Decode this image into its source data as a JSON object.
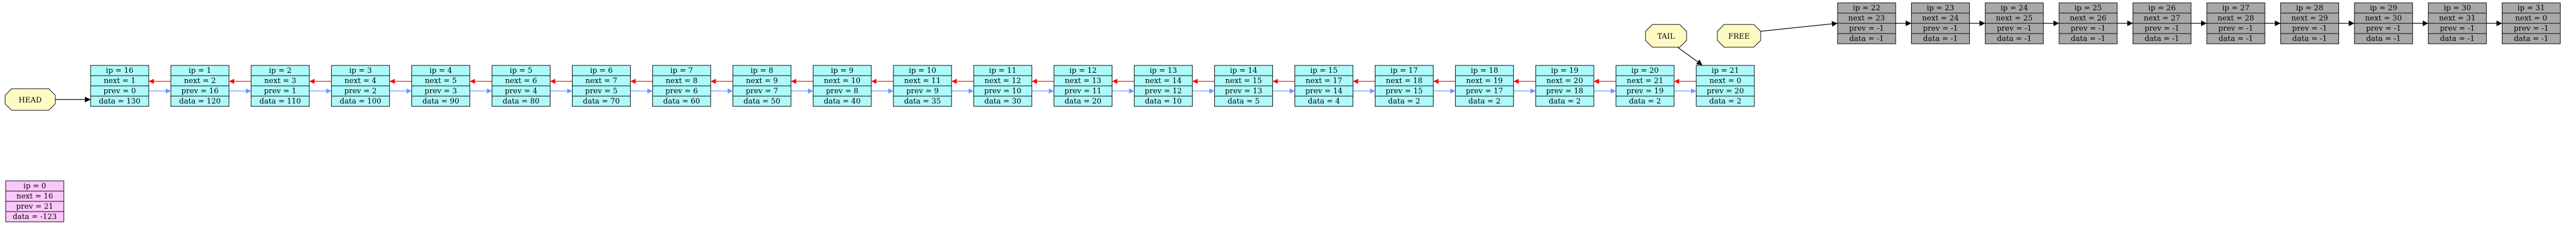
{
  "colors": {
    "active": "#aefafa",
    "free": "#a8a8a8",
    "sentinel": "#fac8fa",
    "label": "#fffac4",
    "next_edge": "#ff0000",
    "prev_edge": "#6699ff",
    "free_edge": "#000000",
    "border": "#000000"
  },
  "labels": {
    "head": "HEAD",
    "tail": "TAIL",
    "free": "FREE"
  },
  "sentinel": {
    "rows": [
      "ip = 0",
      "next = 16",
      "prev = 21",
      "data = -123"
    ]
  },
  "active_nodes": [
    {
      "rows": [
        "ip = 16",
        "next = 1",
        "prev = 0",
        "data = 130"
      ]
    },
    {
      "rows": [
        "ip = 1",
        "next = 2",
        "prev = 16",
        "data = 120"
      ]
    },
    {
      "rows": [
        "ip = 2",
        "next = 3",
        "prev = 1",
        "data = 110"
      ]
    },
    {
      "rows": [
        "ip = 3",
        "next = 4",
        "prev = 2",
        "data = 100"
      ]
    },
    {
      "rows": [
        "ip = 4",
        "next = 5",
        "prev = 3",
        "data = 90"
      ]
    },
    {
      "rows": [
        "ip = 5",
        "next = 6",
        "prev = 4",
        "data = 80"
      ]
    },
    {
      "rows": [
        "ip = 6",
        "next = 7",
        "prev = 5",
        "data = 70"
      ]
    },
    {
      "rows": [
        "ip = 7",
        "next = 8",
        "prev = 6",
        "data = 60"
      ]
    },
    {
      "rows": [
        "ip = 8",
        "next = 9",
        "prev = 7",
        "data = 50"
      ]
    },
    {
      "rows": [
        "ip = 9",
        "next = 10",
        "prev = 8",
        "data = 40"
      ]
    },
    {
      "rows": [
        "ip = 10",
        "next = 11",
        "prev = 9",
        "data = 35"
      ]
    },
    {
      "rows": [
        "ip = 11",
        "next = 12",
        "prev = 10",
        "data = 30"
      ]
    },
    {
      "rows": [
        "ip = 12",
        "next = 13",
        "prev = 11",
        "data = 20"
      ]
    },
    {
      "rows": [
        "ip = 13",
        "next = 14",
        "prev = 12",
        "data = 10"
      ]
    },
    {
      "rows": [
        "ip = 14",
        "next = 15",
        "prev = 13",
        "data = 5"
      ]
    },
    {
      "rows": [
        "ip = 15",
        "next = 17",
        "prev = 14",
        "data = 4"
      ]
    },
    {
      "rows": [
        "ip = 17",
        "next = 18",
        "prev = 15",
        "data = 2"
      ]
    },
    {
      "rows": [
        "ip = 18",
        "next = 19",
        "prev = 17",
        "data = 2"
      ]
    },
    {
      "rows": [
        "ip = 19",
        "next = 20",
        "prev = 18",
        "data = 2"
      ]
    },
    {
      "rows": [
        "ip = 20",
        "next = 21",
        "prev = 19",
        "data = 2"
      ]
    },
    {
      "rows": [
        "ip = 21",
        "next = 0",
        "prev = 20",
        "data = 2"
      ]
    }
  ],
  "free_nodes": [
    {
      "rows": [
        "ip = 22",
        "next = 23",
        "prev = -1",
        "data = -1"
      ]
    },
    {
      "rows": [
        "ip = 23",
        "next = 24",
        "prev = -1",
        "data = -1"
      ]
    },
    {
      "rows": [
        "ip = 24",
        "next = 25",
        "prev = -1",
        "data = -1"
      ]
    },
    {
      "rows": [
        "ip = 25",
        "next = 26",
        "prev = -1",
        "data = -1"
      ]
    },
    {
      "rows": [
        "ip = 26",
        "next = 27",
        "prev = -1",
        "data = -1"
      ]
    },
    {
      "rows": [
        "ip = 27",
        "next = 28",
        "prev = -1",
        "data = -1"
      ]
    },
    {
      "rows": [
        "ip = 28",
        "next = 29",
        "prev = -1",
        "data = -1"
      ]
    },
    {
      "rows": [
        "ip = 29",
        "next = 30",
        "prev = -1",
        "data = -1"
      ]
    },
    {
      "rows": [
        "ip = 30",
        "next = 31",
        "prev = -1",
        "data = -1"
      ]
    },
    {
      "rows": [
        "ip = 31",
        "next = 0",
        "prev = -1",
        "data = -1"
      ]
    }
  ]
}
